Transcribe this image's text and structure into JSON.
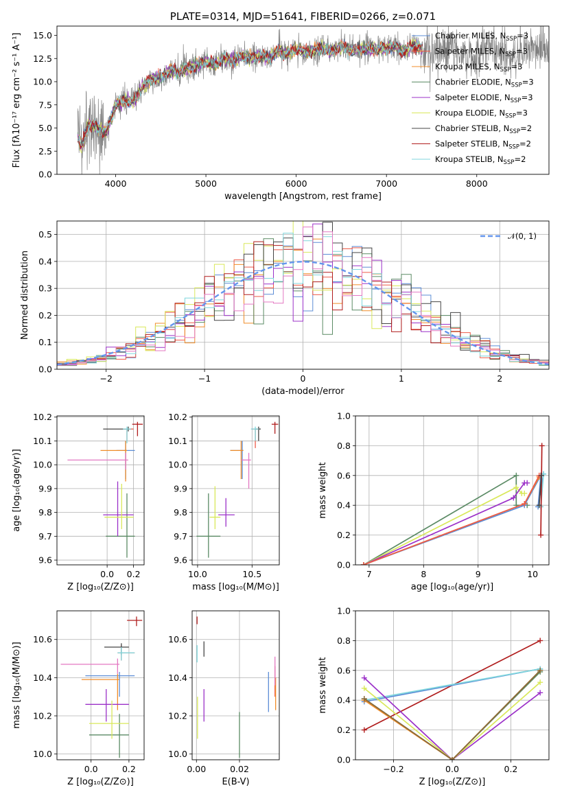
{
  "chart_data": [
    {
      "id": "spectrum",
      "type": "line",
      "title": "PLATE=0314, MJD=51641, FIBERID=0266, z=0.071",
      "xlabel": "wavelength [Angstrom, rest frame]",
      "ylabel": "Flux [fλ10⁻¹⁷ erg cm⁻² s⁻¹ A⁻¹]",
      "xlim": [
        3350,
        8800
      ],
      "ylim": [
        0,
        16
      ],
      "xticks": [
        4000,
        5000,
        6000,
        7000,
        8000
      ],
      "yticks": [
        0.0,
        2.5,
        5.0,
        7.5,
        10.0,
        12.5,
        15.0
      ],
      "data_color": "#808080",
      "continuum": {
        "x": [
          3580,
          3620,
          3700,
          3800,
          3900,
          4000,
          4100,
          4200,
          4300,
          4400,
          4500,
          4600,
          4700,
          4800,
          4900,
          5000,
          5100,
          5200,
          5300,
          5400,
          5500,
          5600,
          5700,
          5800,
          5900,
          6000,
          6100,
          6200,
          6300,
          6400,
          6500,
          6600,
          6700,
          6800,
          6900,
          7000,
          7100,
          7200,
          7300,
          7400
        ],
        "y": [
          4.0,
          2.8,
          5.5,
          5.0,
          4.5,
          7.5,
          8.0,
          7.8,
          9.5,
          10.2,
          10.5,
          11.2,
          11.0,
          11.5,
          11.8,
          12.2,
          11.8,
          12.5,
          12.3,
          12.8,
          12.5,
          12.8,
          12.6,
          13.3,
          13.0,
          13.5,
          13.2,
          13.4,
          13.6,
          13.3,
          13.8,
          13.4,
          13.5,
          13.6,
          13.5,
          13.6,
          13.8,
          13.2,
          14.0,
          13.5
        ]
      },
      "legend": [
        {
          "label": "Chabrier MILES, N",
          "sub": "SSP",
          "suffix": "=3",
          "color": "#5b8cd6"
        },
        {
          "label": "Salpeter MILES, N",
          "sub": "SSP",
          "suffix": "=3",
          "color": "#ee5a47"
        },
        {
          "label": "Kroupa MILES, N",
          "sub": "SSP",
          "suffix": "=3",
          "color": "#f08c28"
        },
        {
          "label": "Chabrier ELODIE, N",
          "sub": "SSP",
          "suffix": "=3",
          "color": "#5a8a64"
        },
        {
          "label": "Salpeter ELODIE, N",
          "sub": "SSP",
          "suffix": "=3",
          "color": "#9b30c8"
        },
        {
          "label": "Kroupa ELODIE, N",
          "sub": "SSP",
          "suffix": "=3",
          "color": "#d9e85a"
        },
        {
          "label": "Chabrier STELIB, N",
          "sub": "SSP",
          "suffix": "=2",
          "color": "#444444"
        },
        {
          "label": "Salpeter STELIB, N",
          "sub": "SSP",
          "suffix": "=2",
          "color": "#b01c1c"
        },
        {
          "label": "Kroupa STELIB, N",
          "sub": "SSP",
          "suffix": "=2",
          "color": "#7fd6dc"
        }
      ]
    },
    {
      "id": "residuals",
      "type": "step",
      "xlabel": "(data-model)/error",
      "ylabel": "Normed distribution",
      "xlim": [
        -2.5,
        2.5
      ],
      "ylim": [
        0,
        0.55
      ],
      "xticks": [
        -2,
        -1,
        0,
        1,
        2
      ],
      "xtick_labels": [
        "−2",
        "−1",
        "0",
        "1",
        "2"
      ],
      "yticks": [
        0.0,
        0.1,
        0.2,
        0.3,
        0.4,
        0.5
      ],
      "gaussian_label": "𝒩(0, 1)",
      "gaussian_color": "#6495ed",
      "bin_width": 0.1
    },
    {
      "id": "age_vs_Z",
      "type": "errorbar",
      "xlabel": "Z [log₁₀(Z/Z⊙)]",
      "ylabel": "age  [log₁₀(age/yr)]",
      "xlim": [
        -0.38,
        0.28
      ],
      "ylim": [
        9.58,
        10.205
      ],
      "xticks": [
        0.0,
        0.2
      ],
      "yticks": [
        9.6,
        9.7,
        9.8,
        9.9,
        10.0,
        10.1,
        10.2
      ],
      "points": [
        {
          "x": 0.14,
          "y": 10.06,
          "xlo": 0.07,
          "xhi": 0.21,
          "ylo": 9.94,
          "yhi": 10.1,
          "color": "#5b8cd6"
        },
        {
          "x": 0.15,
          "y": 10.15,
          "xlo": 0.12,
          "xhi": 0.2,
          "ylo": 10.1,
          "yhi": 10.15,
          "color": "#ee5a47"
        },
        {
          "x": 0.14,
          "y": 10.06,
          "xlo": -0.05,
          "xhi": 0.15,
          "ylo": 9.93,
          "yhi": 10.1,
          "color": "#f08c28"
        },
        {
          "x": 0.15,
          "y": 9.7,
          "xlo": -0.01,
          "xhi": 0.21,
          "ylo": 9.61,
          "yhi": 9.88,
          "color": "#5a8a64"
        },
        {
          "x": 0.08,
          "y": 9.79,
          "xlo": -0.03,
          "xhi": 0.2,
          "ylo": 9.7,
          "yhi": 9.93,
          "color": "#9b30c8"
        },
        {
          "x": 0.11,
          "y": 9.78,
          "xlo": -0.02,
          "xhi": 0.2,
          "ylo": 9.73,
          "yhi": 9.92,
          "color": "#d9e85a"
        },
        {
          "x": 0.16,
          "y": 10.15,
          "xlo": -0.03,
          "xhi": 0.18,
          "ylo": 10.14,
          "yhi": 10.16,
          "color": "#444444"
        },
        {
          "x": 0.23,
          "y": 10.17,
          "xlo": 0.19,
          "xhi": 0.27,
          "ylo": 10.12,
          "yhi": 10.18,
          "color": "#b01c1c"
        },
        {
          "x": 0.15,
          "y": 10.15,
          "xlo": 0.12,
          "xhi": 0.18,
          "ylo": 10.09,
          "yhi": 10.16,
          "color": "#7fd6dc"
        },
        {
          "x": 0.14,
          "y": 10.02,
          "xlo": -0.3,
          "xhi": 0.16,
          "ylo": 9.98,
          "yhi": 10.05,
          "color": "#e377c2"
        }
      ]
    },
    {
      "id": "age_vs_mass",
      "type": "errorbar",
      "xlabel": "mass [log₁₀(M/M⊙)]",
      "ylabel": "",
      "xlim": [
        9.95,
        10.75
      ],
      "ylim": [
        9.58,
        10.205
      ],
      "xticks": [
        10.0,
        10.5
      ],
      "yticks": [
        9.6,
        9.7,
        9.8,
        9.9,
        10.0,
        10.1,
        10.2
      ],
      "points": [
        {
          "x": 10.41,
          "y": 10.06,
          "xlo": 10.3,
          "xhi": 10.42,
          "ylo": 9.94,
          "yhi": 10.1,
          "color": "#5b8cd6"
        },
        {
          "x": 10.53,
          "y": 10.15,
          "xlo": 10.5,
          "xhi": 10.56,
          "ylo": 10.07,
          "yhi": 10.15,
          "color": "#ee5a47"
        },
        {
          "x": 10.4,
          "y": 10.06,
          "xlo": 10.3,
          "xhi": 10.42,
          "ylo": 9.94,
          "yhi": 10.1,
          "color": "#f08c28"
        },
        {
          "x": 10.1,
          "y": 9.7,
          "xlo": 9.99,
          "xhi": 10.21,
          "ylo": 9.61,
          "yhi": 9.88,
          "color": "#5a8a64"
        },
        {
          "x": 10.26,
          "y": 9.79,
          "xlo": 10.19,
          "xhi": 10.34,
          "ylo": 9.74,
          "yhi": 9.86,
          "color": "#9b30c8"
        },
        {
          "x": 10.16,
          "y": 9.78,
          "xlo": 10.11,
          "xhi": 10.21,
          "ylo": 9.73,
          "yhi": 9.91,
          "color": "#d9e85a"
        },
        {
          "x": 10.56,
          "y": 10.15,
          "xlo": 10.53,
          "xhi": 10.58,
          "ylo": 10.1,
          "yhi": 10.16,
          "color": "#444444"
        },
        {
          "x": 10.71,
          "y": 10.17,
          "xlo": 10.68,
          "xhi": 10.74,
          "ylo": 10.13,
          "yhi": 10.18,
          "color": "#b01c1c"
        },
        {
          "x": 10.53,
          "y": 10.15,
          "xlo": 10.49,
          "xhi": 10.56,
          "ylo": 10.1,
          "yhi": 10.16,
          "color": "#7fd6dc"
        },
        {
          "x": 10.47,
          "y": 10.02,
          "xlo": 10.4,
          "xhi": 10.49,
          "ylo": 9.9,
          "yhi": 10.05,
          "color": "#e377c2"
        }
      ]
    },
    {
      "id": "weight_vs_age",
      "type": "line",
      "xlabel": "age  [log₁₀(age/yr)]",
      "ylabel": "mass weight",
      "xlim": [
        6.75,
        10.3
      ],
      "ylim": [
        0,
        1.0
      ],
      "xticks": [
        7,
        8,
        9,
        10
      ],
      "yticks": [
        0.0,
        0.2,
        0.4,
        0.6,
        0.8,
        1.0
      ],
      "series": [
        {
          "color": "#5a8a64",
          "x": [
            6.9,
            9.7,
            9.7,
            9.9
          ],
          "y": [
            0.0,
            0.6,
            0.4,
            0.4
          ]
        },
        {
          "color": "#d9e85a",
          "x": [
            6.9,
            9.7,
            9.8,
            9.85
          ],
          "y": [
            0.0,
            0.52,
            0.48,
            0.48
          ]
        },
        {
          "color": "#9b30c8",
          "x": [
            6.9,
            9.65,
            9.85,
            9.9
          ],
          "y": [
            0.0,
            0.45,
            0.55,
            0.55
          ]
        },
        {
          "color": "#5b8cd6",
          "x": [
            6.9,
            9.85,
            10.15,
            10.1,
            10.2
          ],
          "y": [
            0.0,
            0.4,
            0.6,
            0.39,
            0.61
          ]
        },
        {
          "color": "#f08c28",
          "x": [
            6.9,
            9.85,
            10.12
          ],
          "y": [
            0.0,
            0.41,
            0.59
          ]
        },
        {
          "color": "#ee5a47",
          "x": [
            6.9,
            9.85,
            10.12,
            10.15
          ],
          "y": [
            0.0,
            0.41,
            0.6,
            0.6
          ]
        },
        {
          "color": "#7fd6dc",
          "x": [
            10.15,
            10.2
          ],
          "y": [
            0.39,
            0.61
          ]
        },
        {
          "color": "#b01c1c",
          "x": [
            10.15,
            10.17
          ],
          "y": [
            0.2,
            0.8
          ]
        },
        {
          "color": "#444444",
          "x": [
            10.12,
            10.16
          ],
          "y": [
            0.4,
            0.6
          ]
        }
      ]
    },
    {
      "id": "mass_vs_Z",
      "type": "errorbar",
      "xlabel": "Z [log₁₀(Z/Z⊙)]",
      "ylabel": "mass [log₁₀(M/M⊙)]",
      "xlim": [
        -0.18,
        0.28
      ],
      "ylim": [
        9.97,
        10.75
      ],
      "xticks": [
        0.0,
        0.2
      ],
      "yticks": [
        10.0,
        10.2,
        10.4,
        10.6
      ],
      "points": [
        {
          "x": 0.15,
          "y": 10.41,
          "xlo": -0.03,
          "xhi": 0.23,
          "ylo": 10.3,
          "yhi": 10.43,
          "color": "#5b8cd6"
        },
        {
          "x": 0.16,
          "y": 10.53,
          "xlo": 0.14,
          "xhi": 0.23,
          "ylo": 10.49,
          "yhi": 10.57,
          "color": "#ee5a47"
        },
        {
          "x": 0.14,
          "y": 10.39,
          "xlo": -0.05,
          "xhi": 0.15,
          "ylo": 10.23,
          "yhi": 10.42,
          "color": "#f08c28"
        },
        {
          "x": 0.15,
          "y": 10.1,
          "xlo": -0.01,
          "xhi": 0.2,
          "ylo": 9.98,
          "yhi": 10.21,
          "color": "#5a8a64"
        },
        {
          "x": 0.08,
          "y": 10.26,
          "xlo": -0.03,
          "xhi": 0.2,
          "ylo": 10.17,
          "yhi": 10.34,
          "color": "#9b30c8"
        },
        {
          "x": 0.11,
          "y": 10.16,
          "xlo": -0.01,
          "xhi": 0.2,
          "ylo": 10.08,
          "yhi": 10.28,
          "color": "#d9e85a"
        },
        {
          "x": 0.16,
          "y": 10.56,
          "xlo": 0.07,
          "xhi": 0.2,
          "ylo": 10.52,
          "yhi": 10.58,
          "color": "#444444"
        },
        {
          "x": 0.24,
          "y": 10.7,
          "xlo": 0.19,
          "xhi": 0.27,
          "ylo": 10.67,
          "yhi": 10.72,
          "color": "#b01c1c"
        },
        {
          "x": 0.16,
          "y": 10.53,
          "xlo": 0.14,
          "xhi": 0.23,
          "ylo": 10.49,
          "yhi": 10.56,
          "color": "#7fd6dc"
        },
        {
          "x": 0.14,
          "y": 10.47,
          "xlo": -0.16,
          "xhi": 0.15,
          "ylo": 10.42,
          "yhi": 10.5,
          "color": "#e377c2"
        }
      ]
    },
    {
      "id": "mass_vs_EBV",
      "type": "errorbar",
      "xlabel": "E(B-V)",
      "ylabel": "",
      "xlim": [
        -0.002,
        0.0385
      ],
      "ylim": [
        9.97,
        10.75
      ],
      "xticks": [
        0.0,
        0.02
      ],
      "yticks": [
        10.0,
        10.2,
        10.4,
        10.6
      ],
      "points": [
        {
          "x": 0.0335,
          "y": 10.32,
          "ylo": 10.22,
          "yhi": 10.43,
          "color": "#5b8cd6"
        },
        {
          "x": 0.0365,
          "y": 10.38,
          "ylo": 10.3,
          "yhi": 10.46,
          "color": "#ee5a47"
        },
        {
          "x": 0.0368,
          "y": 10.32,
          "ylo": 10.23,
          "yhi": 10.4,
          "color": "#f08c28"
        },
        {
          "x": 0.02,
          "y": 10.1,
          "ylo": 9.98,
          "yhi": 10.22,
          "color": "#5a8a64"
        },
        {
          "x": 0.0035,
          "y": 10.26,
          "ylo": 10.17,
          "yhi": 10.34,
          "color": "#9b30c8"
        },
        {
          "x": 0.0005,
          "y": 10.19,
          "ylo": 10.08,
          "yhi": 10.3,
          "color": "#d9e85a"
        },
        {
          "x": 0.0035,
          "y": 10.55,
          "ylo": 10.51,
          "yhi": 10.59,
          "color": "#444444"
        },
        {
          "x": 0.0003,
          "y": 10.7,
          "ylo": 10.68,
          "yhi": 10.72,
          "color": "#b01c1c"
        },
        {
          "x": 0.0003,
          "y": 10.53,
          "ylo": 10.48,
          "yhi": 10.57,
          "color": "#7fd6dc"
        },
        {
          "x": 0.0365,
          "y": 10.43,
          "ylo": 10.36,
          "yhi": 10.51,
          "color": "#e377c2"
        }
      ]
    },
    {
      "id": "weight_vs_Z",
      "type": "line",
      "xlabel": "Z [log₁₀(Z/Z⊙)]",
      "ylabel": "mass weight",
      "xlim": [
        -0.33,
        0.33
      ],
      "ylim": [
        0,
        1.0
      ],
      "xticks": [
        -0.2,
        0.0,
        0.2
      ],
      "xtick_labels": [
        "−0.2",
        "0.0",
        "0.2"
      ],
      "yticks": [
        0.0,
        0.2,
        0.4,
        0.6,
        0.8,
        1.0
      ],
      "series": [
        {
          "color": "#b01c1c",
          "x": [
            -0.3,
            0.3
          ],
          "y": [
            0.2,
            0.8
          ]
        },
        {
          "color": "#5b8cd6",
          "x": [
            -0.3,
            0.3
          ],
          "y": [
            0.39,
            0.61
          ]
        },
        {
          "color": "#7fd6dc",
          "x": [
            -0.3,
            0.3
          ],
          "y": [
            0.4,
            0.61
          ]
        },
        {
          "color": "#9b30c8",
          "x": [
            -0.3,
            0.0,
            0.3
          ],
          "y": [
            0.55,
            0.0,
            0.45
          ]
        },
        {
          "color": "#d9e85a",
          "x": [
            -0.3,
            0.0,
            0.3
          ],
          "y": [
            0.48,
            0.0,
            0.52
          ]
        },
        {
          "color": "#5a8a64",
          "x": [
            -0.3,
            0.0,
            0.3
          ],
          "y": [
            0.41,
            0.0,
            0.59
          ]
        },
        {
          "color": "#f08c28",
          "x": [
            -0.3,
            0.0,
            0.3
          ],
          "y": [
            0.4,
            0.0,
            0.6
          ]
        },
        {
          "color": "#8a6a3a",
          "x": [
            -0.3,
            0.0,
            0.3
          ],
          "y": [
            0.41,
            0.0,
            0.6
          ]
        }
      ]
    }
  ]
}
